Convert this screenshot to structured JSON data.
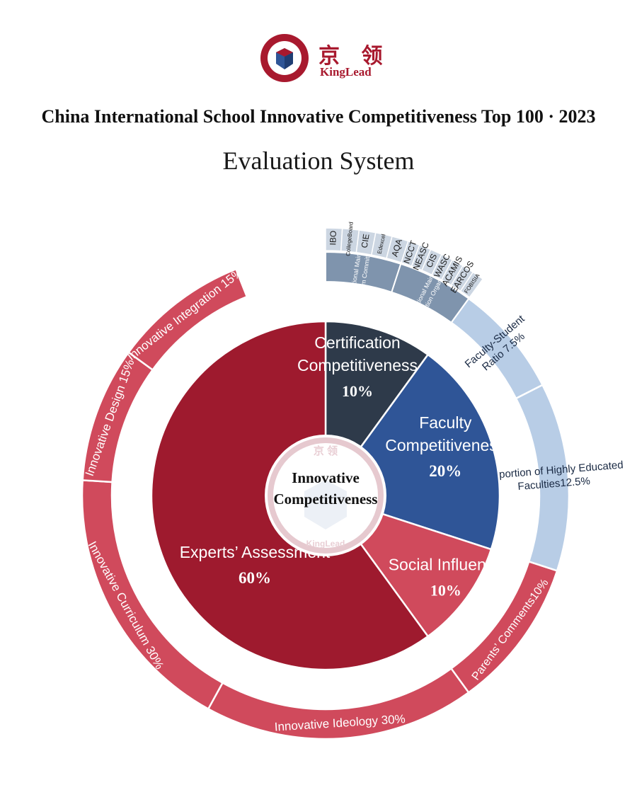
{
  "header": {
    "logo_zh": "京 领",
    "logo_en": "KingLead",
    "title": "China International School Innovative Competitiveness Top 100 · 2023",
    "subtitle": "Evaluation System"
  },
  "colors": {
    "brand_red": "#a8192e",
    "experts_red": "#9e1a2e",
    "outer_red": "#d04a5c",
    "social_red": "#d04a5c",
    "certification_dark": "#2e3a4a",
    "faculty_blue": "#2f5597",
    "faculty_outer": "#b8cde6",
    "cert_outer": "#7f94ad",
    "cert_items": "#ccd6e2"
  },
  "chart_data": {
    "type": "sunburst",
    "center_label": [
      "Innovative",
      "Competitiveness"
    ],
    "center_watermark": [
      "京 领",
      "KingLead"
    ],
    "inner": [
      {
        "key": "certification",
        "label": [
          "Certification",
          "Competitiveness"
        ],
        "value_text": "10%",
        "value": 10
      },
      {
        "key": "faculty",
        "label": [
          "Faculty",
          "Competitiveness"
        ],
        "value_text": "20%",
        "value": 20
      },
      {
        "key": "social",
        "label": [
          "Social Influence"
        ],
        "value_text": "10%",
        "value": 10
      },
      {
        "key": "experts",
        "label": [
          "Experts’ Assessment"
        ],
        "value_text": "60%",
        "value": 60
      }
    ],
    "outer_experts": [
      {
        "label": "Innovative Ideology 30%",
        "value": 30
      },
      {
        "label": "Innovative Curriculum 30%",
        "value": 30
      },
      {
        "label": "Innovative Design 15%",
        "value": 15
      },
      {
        "label": "Innovative Integration 15%",
        "value": 15
      }
    ],
    "outer_social": [
      {
        "label": "Parents’ Comments10%",
        "value": 10
      }
    ],
    "outer_faculty": [
      {
        "lines": [
          "Faculty-Student",
          "Ratio 7.5%"
        ],
        "value": 7.5
      },
      {
        "lines": [
          "Proportion of Highly Educated",
          "Faculties12.5%"
        ],
        "value": 12.5
      }
    ],
    "outer_certification": [
      {
        "lines": [
          "International Mainstream",
          "Exam Committees"
        ],
        "items": [
          "IBO",
          "CollegeBoard",
          "CIE",
          "Edexcel",
          "AQA"
        ]
      },
      {
        "lines": [
          "International Mainstream",
          "Certification Organizations"
        ],
        "items": [
          "NCCT",
          "NEASC",
          "CIS",
          "WASC",
          "ACAMIS",
          "EARCOS",
          "FOBISIA"
        ]
      }
    ]
  }
}
